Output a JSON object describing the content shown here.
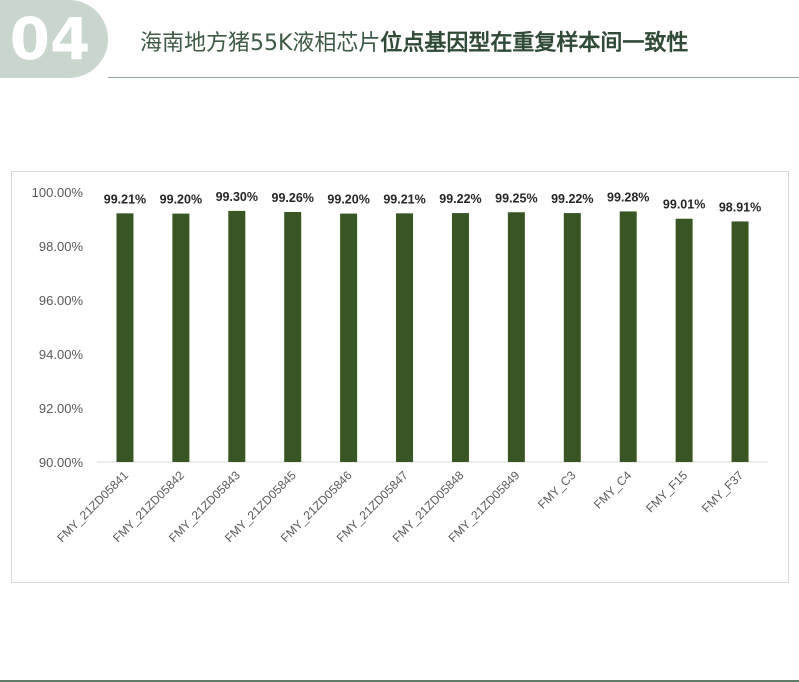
{
  "header": {
    "number": "04",
    "title_regular": "海南地方猪55K液相芯片",
    "title_bold": "位点基因型在重复样本间一致性"
  },
  "chart_data": {
    "type": "bar",
    "categories": [
      "FMY_21ZD05841",
      "FMY_21ZD05842",
      "FMY_21ZD05843",
      "FMY_21ZD05845",
      "FMY_21ZD05846",
      "FMY_21ZD05847",
      "FMY_21ZD05848",
      "FMY_21ZD05849",
      "FMY_C3",
      "FMY_C4",
      "FMY_F15",
      "FMY_F37"
    ],
    "values": [
      99.21,
      99.2,
      99.3,
      99.26,
      99.2,
      99.21,
      99.22,
      99.25,
      99.22,
      99.28,
      99.01,
      98.91
    ],
    "data_labels": [
      "99.21%",
      "99.20%",
      "99.30%",
      "99.26%",
      "99.20%",
      "99.21%",
      "99.22%",
      "99.25%",
      "99.22%",
      "99.28%",
      "99.01%",
      "98.91%"
    ],
    "yticks": [
      "100.00%",
      "98.00%",
      "96.00%",
      "94.00%",
      "92.00%",
      "90.00%"
    ],
    "ylim": [
      90,
      100
    ],
    "xlabel": "",
    "ylabel": "",
    "title": "",
    "grid": false,
    "colors": {
      "bar": "#375623"
    }
  }
}
